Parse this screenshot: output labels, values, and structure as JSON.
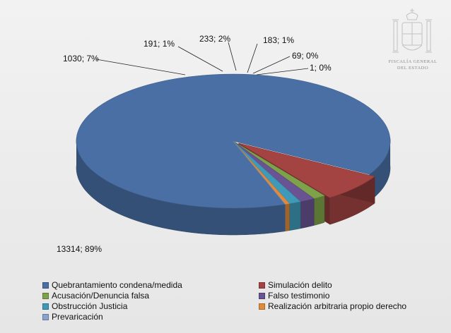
{
  "chart_data": {
    "type": "pie",
    "title": "",
    "three_d": true,
    "legend_position": "bottom",
    "slices": [
      {
        "name": "Quebrantamiento condena/medida",
        "value": 13314,
        "percent": "89%",
        "label": "13314; 89%",
        "color": "#4a6fa5"
      },
      {
        "name": "Simulación delito",
        "value": 1030,
        "percent": "7%",
        "label": "1030; 7%",
        "color": "#a34442"
      },
      {
        "name": "Acusación/Denuncia falsa",
        "value": 191,
        "percent": "1%",
        "label": "191; 1%",
        "color": "#7ea24a"
      },
      {
        "name": "Falso testimonio",
        "value": 233,
        "percent": "2%",
        "label": "233; 2%",
        "color": "#6a5392"
      },
      {
        "name": "Obstrucción Justicia",
        "value": 183,
        "percent": "1%",
        "label": "183; 1%",
        "color": "#3e9ab8"
      },
      {
        "name": "Realización arbitraria propio derecho",
        "value": 69,
        "percent": "0%",
        "label": "69; 0%",
        "color": "#e08a3c"
      },
      {
        "name": "Prevaricación",
        "value": 1,
        "percent": "0%",
        "label": "1; 0%",
        "color": "#8aa2cc"
      }
    ]
  },
  "emblem": {
    "icon": "coat-of-arms-icon",
    "line1": "FISCALÍA GENERAL",
    "line2": "DEL ESTADO"
  }
}
